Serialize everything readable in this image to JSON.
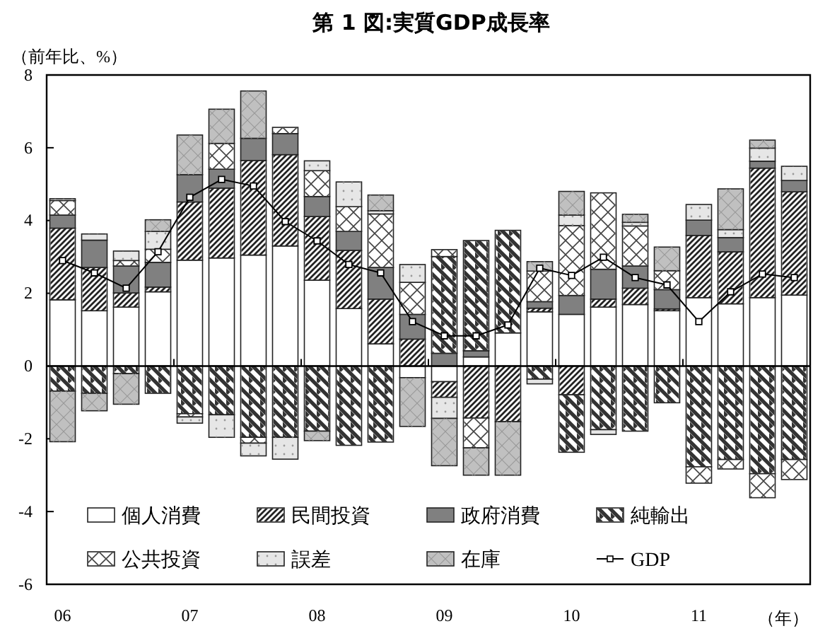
{
  "chart_data": {
    "type": "bar",
    "stacked": true,
    "title": "第 1 図:実質GDP成長率",
    "ylabel": "（前年比、%）",
    "xlabel": "（年）",
    "categories": [
      "06",
      null,
      null,
      null,
      "07",
      null,
      null,
      null,
      "08",
      null,
      null,
      null,
      "09",
      null,
      null,
      null,
      "10",
      null,
      null,
      null,
      "11",
      null,
      null,
      null
    ],
    "ylim": [
      -6,
      8
    ],
    "yticks": [
      -6,
      -4,
      -2,
      0,
      2,
      4,
      6,
      8
    ],
    "legend": "bottom left",
    "marker": "square",
    "series": [
      {
        "name": "個人消費",
        "color": "#ffffff",
        "values": [
          1.82,
          1.52,
          1.62,
          2.04,
          2.91,
          2.97,
          3.05,
          3.3,
          2.36,
          1.58,
          0.61,
          -0.32,
          -0.43,
          0.25,
          0.91,
          1.49,
          1.42,
          1.62,
          1.69,
          1.52,
          1.88,
          1.71,
          1.88,
          1.95
        ]
      },
      {
        "name": "民間投資",
        "color": "#ffffff",
        "values": [
          1.97,
          1.19,
          0.39,
          0.13,
          1.6,
          1.92,
          2.6,
          2.51,
          1.75,
          1.6,
          1.23,
          0.74,
          -0.43,
          -1.43,
          -1.53,
          0.1,
          -0.79,
          0.22,
          0.45,
          0.05,
          1.71,
          1.43,
          3.56,
          2.84
        ]
      },
      {
        "name": "政府消費",
        "color": "#808080",
        "values": [
          0.36,
          0.75,
          0.74,
          0.68,
          0.75,
          0.52,
          0.61,
          0.58,
          0.55,
          0.52,
          0.87,
          0.68,
          0.35,
          0.17,
          0,
          0.18,
          0.52,
          0.82,
          0.61,
          0.53,
          0.42,
          0.39,
          0.19,
          0.31
        ]
      },
      {
        "name": "純輸出",
        "color": "#ffffff",
        "values": [
          -0.69,
          -0.75,
          -0.21,
          -0.75,
          -1.31,
          -1.34,
          -1.96,
          -1.96,
          -1.79,
          -2.18,
          -2.09,
          0,
          2.66,
          3.03,
          2.82,
          -0.36,
          -1.58,
          -1.75,
          -1.79,
          -1.01,
          -2.77,
          -2.57,
          -2.96,
          -2.57
        ]
      },
      {
        "name": "公共投資",
        "color": "#ffffff",
        "values": [
          0.4,
          0,
          0.15,
          0.36,
          -0.09,
          0.71,
          -0.16,
          0.17,
          0.71,
          0.68,
          1.47,
          0.88,
          0.19,
          -0.82,
          0,
          0.84,
          1.92,
          2.1,
          1.1,
          0.52,
          -0.45,
          -0.26,
          -0.66,
          -0.55
        ]
      },
      {
        "name": "誤差",
        "color": "#e6e6e6",
        "values": [
          0.05,
          0.17,
          0.26,
          0.49,
          -0.17,
          -0.62,
          -0.35,
          -0.6,
          0.27,
          0.68,
          0.09,
          0.49,
          -0.58,
          0,
          0,
          -0.13,
          0.29,
          -0.13,
          0.1,
          0,
          0.43,
          0.22,
          0.36,
          0.39
        ]
      },
      {
        "name": "在庫",
        "color": "#c0c0c0",
        "values": [
          -1.39,
          -0.48,
          -0.84,
          0.32,
          1.09,
          0.94,
          1.3,
          0,
          -0.26,
          0,
          0.43,
          -1.34,
          -1.3,
          -0.75,
          -1.47,
          0.26,
          0.65,
          0,
          0.22,
          0.65,
          0,
          1.12,
          0.22,
          0
        ]
      },
      {
        "name": "GDP",
        "type": "line",
        "color": "#000000",
        "values": [
          2.9,
          2.56,
          2.14,
          3.14,
          4.64,
          5.13,
          4.95,
          3.97,
          3.44,
          2.79,
          2.56,
          1.22,
          0.83,
          0.83,
          1.13,
          2.69,
          2.49,
          2.99,
          2.43,
          2.23,
          1.22,
          2.04,
          2.53,
          2.43
        ]
      }
    ]
  }
}
